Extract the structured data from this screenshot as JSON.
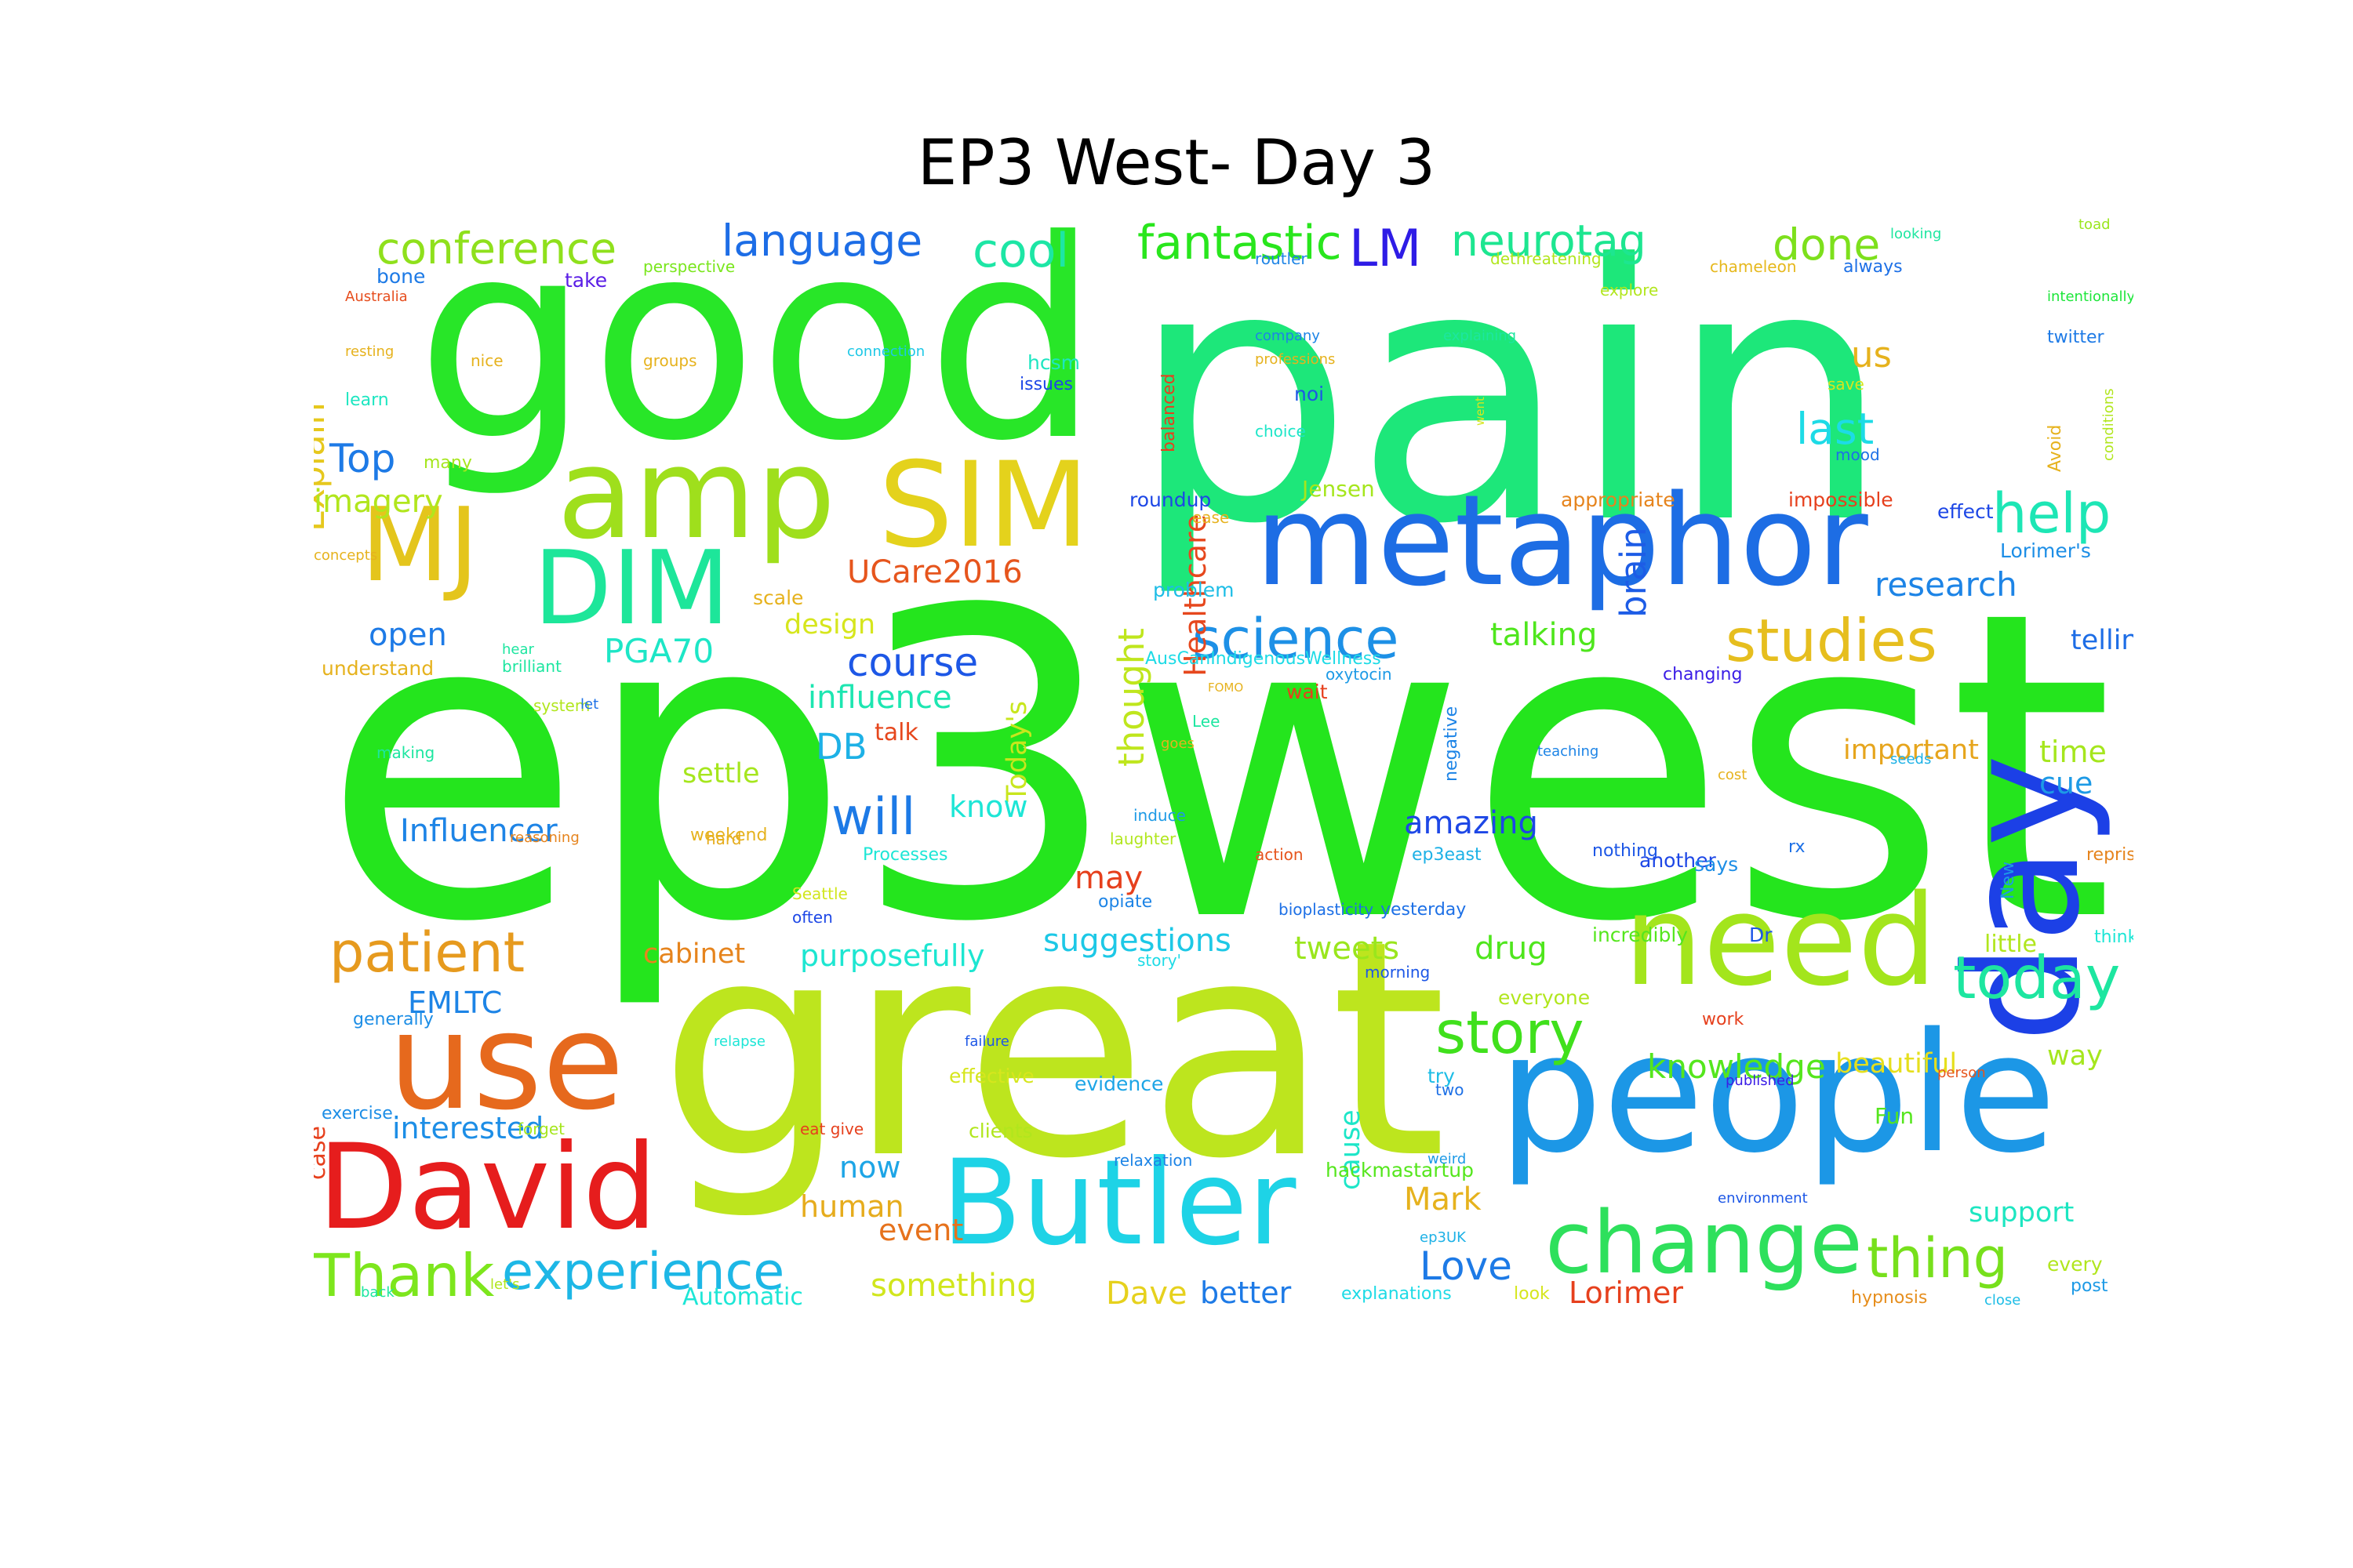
{
  "title": "EP3 West- Day 3",
  "words": [
    {
      "text": "ep3west",
      "color": "#24e51d"
    },
    {
      "text": "pain",
      "color": "#1de77a"
    },
    {
      "text": "good",
      "color": "#28e628"
    },
    {
      "text": "great",
      "color": "#bde51e"
    },
    {
      "text": "people",
      "color": "#1c97e6"
    },
    {
      "text": "metaphor",
      "color": "#1d6de4"
    },
    {
      "text": "use",
      "color": "#e6691d"
    },
    {
      "text": "David",
      "color": "#e61d1d"
    },
    {
      "text": "Butler",
      "color": "#1ed3e6"
    },
    {
      "text": "need",
      "color": "#a3e51c"
    },
    {
      "text": "change",
      "color": "#2ee05c"
    },
    {
      "text": "day",
      "color": "#1c40e6"
    },
    {
      "text": "amp",
      "color": "#9fdf1c"
    },
    {
      "text": "SIM",
      "color": "#e4d21c"
    },
    {
      "text": "MJ",
      "color": "#e4c51c"
    },
    {
      "text": "DIM",
      "color": "#1de69a"
    },
    {
      "text": "science",
      "color": "#1d90e6"
    },
    {
      "text": "studies",
      "color": "#e6be1e"
    },
    {
      "text": "story",
      "color": "#40e01c"
    },
    {
      "text": "thing",
      "color": "#77e01c"
    },
    {
      "text": "today",
      "color": "#1de6a0"
    },
    {
      "text": "experience",
      "color": "#1db7e6"
    },
    {
      "text": "patient",
      "color": "#e69a1e"
    },
    {
      "text": "Thank",
      "color": "#7de61d"
    },
    {
      "text": "help",
      "color": "#1de6b5"
    },
    {
      "text": "conference",
      "color": "#8fe01c"
    },
    {
      "text": "language",
      "color": "#1d6de6"
    },
    {
      "text": "cool",
      "color": "#1de6a5"
    },
    {
      "text": "fantastic",
      "color": "#29e61d"
    },
    {
      "text": "LM",
      "color": "#2e1ce6"
    },
    {
      "text": "neurotag",
      "color": "#1de690"
    },
    {
      "text": "done",
      "color": "#7de01c"
    },
    {
      "text": "Explain",
      "color": "#e6c81d"
    },
    {
      "text": "thought",
      "color": "#bfe61d"
    },
    {
      "text": "Healthcare",
      "color": "#e6471d"
    },
    {
      "text": "brain",
      "color": "#1d5ce6"
    },
    {
      "text": "us",
      "color": "#e6b21d"
    },
    {
      "text": "last",
      "color": "#1ddbe6"
    },
    {
      "text": "Top",
      "color": "#1d7ae6"
    },
    {
      "text": "imagery",
      "color": "#b1e61d"
    },
    {
      "text": "UCare2016",
      "color": "#e6551d"
    },
    {
      "text": "research",
      "color": "#1d84e6"
    },
    {
      "text": "open",
      "color": "#1d7ae6"
    },
    {
      "text": "PGA70",
      "color": "#1de6c6"
    },
    {
      "text": "course",
      "color": "#1d57e6"
    },
    {
      "text": "influence",
      "color": "#1de6b1"
    },
    {
      "text": "talking",
      "color": "#4fe61d"
    },
    {
      "text": "telling",
      "color": "#1d6de6"
    },
    {
      "text": "design",
      "color": "#d6e61d"
    },
    {
      "text": "Today's",
      "color": "#c8e61d"
    },
    {
      "text": "DB",
      "color": "#1db1e6"
    },
    {
      "text": "talk",
      "color": "#e6471d"
    },
    {
      "text": "important",
      "color": "#e6a51d"
    },
    {
      "text": "time",
      "color": "#a5e61d"
    },
    {
      "text": "cue",
      "color": "#1d9ae6"
    },
    {
      "text": "settle",
      "color": "#a5e61d"
    },
    {
      "text": "will",
      "color": "#1d7ae6"
    },
    {
      "text": "know",
      "color": "#1de6d6"
    },
    {
      "text": "amazing",
      "color": "#1d47e6"
    },
    {
      "text": "Influencer",
      "color": "#1d84e6"
    },
    {
      "text": "may",
      "color": "#e6401d"
    },
    {
      "text": "suggestions",
      "color": "#1dc8e6"
    },
    {
      "text": "tweets",
      "color": "#9ae61d"
    },
    {
      "text": "drug",
      "color": "#4fe61d"
    },
    {
      "text": "little",
      "color": "#b1e61d"
    },
    {
      "text": "cabinet",
      "color": "#e6841d"
    },
    {
      "text": "purposefully",
      "color": "#1de6d1"
    },
    {
      "text": "EMLTC",
      "color": "#1d84e6"
    },
    {
      "text": "knowledge",
      "color": "#55e61d"
    },
    {
      "text": "beautiful",
      "color": "#e6df1d"
    },
    {
      "text": "way",
      "color": "#a5e61d"
    },
    {
      "text": "case",
      "color": "#e6401d"
    },
    {
      "text": "cause",
      "color": "#1de6c8"
    },
    {
      "text": "interested",
      "color": "#1d8ee6"
    },
    {
      "text": "now",
      "color": "#1da5e6"
    },
    {
      "text": "human",
      "color": "#e6ac1d"
    },
    {
      "text": "event",
      "color": "#e6721d"
    },
    {
      "text": "Mark",
      "color": "#e6b21d"
    },
    {
      "text": "support",
      "color": "#1de6c1"
    },
    {
      "text": "Love",
      "color": "#1d7ae6"
    },
    {
      "text": "something",
      "color": "#d1e61d"
    },
    {
      "text": "Dave",
      "color": "#e6d11d"
    },
    {
      "text": "better",
      "color": "#1d7ae6"
    },
    {
      "text": "Lorimer",
      "color": "#e6401d"
    },
    {
      "text": "Automatic",
      "color": "#1de6d6"
    },
    {
      "text": "hackmastartup",
      "color": "#55e61d"
    },
    {
      "text": "Fun",
      "color": "#55e61d"
    },
    {
      "text": "every",
      "color": "#b1e61d"
    },
    {
      "text": "post",
      "color": "#1d9ae6"
    },
    {
      "text": "explanations",
      "color": "#1ddbe6"
    },
    {
      "text": "look",
      "color": "#d6e61d"
    },
    {
      "text": "hypnosis",
      "color": "#e68e1d"
    },
    {
      "text": "close",
      "color": "#1dbde6"
    },
    {
      "text": "bone",
      "color": "#1d7ae6"
    },
    {
      "text": "take",
      "color": "#5a1de6"
    },
    {
      "text": "perspective",
      "color": "#7ae61d"
    },
    {
      "text": "Australia",
      "color": "#e64d1d"
    },
    {
      "text": "routler",
      "color": "#1d84e6"
    },
    {
      "text": "dethreatening",
      "color": "#b1e61d"
    },
    {
      "text": "chameleon",
      "color": "#e6b81d"
    },
    {
      "text": "always",
      "color": "#1d70e6"
    },
    {
      "text": "looking",
      "color": "#1de6a0"
    },
    {
      "text": "explore",
      "color": "#b1e61d"
    },
    {
      "text": "intentionally",
      "color": "#1de63a"
    },
    {
      "text": "twitter",
      "color": "#1d7ae6"
    },
    {
      "text": "Avoid",
      "color": "#e6b21d"
    },
    {
      "text": "conditions",
      "color": "#b1e61d"
    },
    {
      "text": "toad",
      "color": "#9ae61d"
    },
    {
      "text": "company",
      "color": "#1d84e6"
    },
    {
      "text": "professions",
      "color": "#e6b21d"
    },
    {
      "text": "explaining",
      "color": "#1de6a0"
    },
    {
      "text": "hcsm",
      "color": "#1de6c1"
    },
    {
      "text": "issues",
      "color": "#1d47e6"
    },
    {
      "text": "choice",
      "color": "#1de6c8"
    },
    {
      "text": "noi",
      "color": "#1d57e6"
    },
    {
      "text": "Jensen",
      "color": "#a5e61d"
    },
    {
      "text": "roundup",
      "color": "#1d47e6"
    },
    {
      "text": "appropriate",
      "color": "#e6841d"
    },
    {
      "text": "impossible",
      "color": "#e6401d"
    },
    {
      "text": "effect",
      "color": "#1d47e6"
    },
    {
      "text": "Lorimer's",
      "color": "#1d8ee6"
    },
    {
      "text": "problem",
      "color": "#1dbde6"
    },
    {
      "text": "AusCanIndigenousWellness",
      "color": "#1ddbe6"
    },
    {
      "text": "oxytocin",
      "color": "#1d9ae6"
    },
    {
      "text": "changing",
      "color": "#3a1de6"
    },
    {
      "text": "negative",
      "color": "#1d84e6"
    },
    {
      "text": "teaching",
      "color": "#1d84e6"
    },
    {
      "text": "cost",
      "color": "#e6b21d"
    },
    {
      "text": "seeds",
      "color": "#1db1e6"
    },
    {
      "text": "induce",
      "color": "#1d9ae6"
    },
    {
      "text": "laughter",
      "color": "#b1e61d"
    },
    {
      "text": "Processes",
      "color": "#1de6d6"
    },
    {
      "text": "action",
      "color": "#e6551d"
    },
    {
      "text": "ep3east",
      "color": "#1db1e6"
    },
    {
      "text": "nothing",
      "color": "#1d57e6"
    },
    {
      "text": "another",
      "color": "#1d47e6"
    },
    {
      "text": "says",
      "color": "#1d8ee6"
    },
    {
      "text": "New",
      "color": "#1d9ae6"
    },
    {
      "text": "reprise",
      "color": "#e6841d"
    },
    {
      "text": "Seattle",
      "color": "#d1e61d"
    },
    {
      "text": "often",
      "color": "#1d47e6"
    },
    {
      "text": "opiate",
      "color": "#1d84e6"
    },
    {
      "text": "bioplasticity",
      "color": "#1d70e6"
    },
    {
      "text": "yesterday",
      "color": "#1d70e6"
    },
    {
      "text": "incredibly",
      "color": "#55e61d"
    },
    {
      "text": "Dr",
      "color": "#1d57e6"
    },
    {
      "text": "think",
      "color": "#1de6d6"
    },
    {
      "text": "story'",
      "color": "#1ddbe6"
    },
    {
      "text": "morning",
      "color": "#1d57e6"
    },
    {
      "text": "everyone",
      "color": "#b1e61d"
    },
    {
      "text": "work",
      "color": "#e6401d"
    },
    {
      "text": "failure",
      "color": "#1d57e6"
    },
    {
      "text": "effective",
      "color": "#d6e61d"
    },
    {
      "text": "evidence",
      "color": "#1da5e6"
    },
    {
      "text": "try",
      "color": "#1dbde6"
    },
    {
      "text": "two",
      "color": "#1d70e6"
    },
    {
      "text": "published",
      "color": "#3a1de6"
    },
    {
      "text": "person",
      "color": "#e6551d"
    },
    {
      "text": "clients",
      "color": "#b1e61d"
    },
    {
      "text": "relaxation",
      "color": "#1d84e6"
    },
    {
      "text": "weird",
      "color": "#1d9ae6"
    },
    {
      "text": "environment",
      "color": "#1d57e6"
    },
    {
      "text": "ep3UK",
      "color": "#1db1e6"
    },
    {
      "text": "exercise",
      "color": "#1d8ee6"
    },
    {
      "text": "forget",
      "color": "#a5e61d"
    },
    {
      "text": "let's",
      "color": "#b1e61d"
    },
    {
      "text": "eat give",
      "color": "#e6401d"
    },
    {
      "text": "relapse",
      "color": "#1de6d6"
    },
    {
      "text": "back",
      "color": "#1de6a0"
    },
    {
      "text": "generally",
      "color": "#1d8ee6"
    },
    {
      "text": "reasoning",
      "color": "#e6841d"
    },
    {
      "text": "hard",
      "color": "#e6ac1d"
    },
    {
      "text": "weekend",
      "color": "#e6b21d"
    },
    {
      "text": "making",
      "color": "#1de6a0"
    },
    {
      "text": "system",
      "color": "#b1e61d"
    },
    {
      "text": "brilliant",
      "color": "#1de6a0"
    },
    {
      "text": "hear",
      "color": "#1de6a0"
    },
    {
      "text": "understand",
      "color": "#e6b21d"
    },
    {
      "text": "scale",
      "color": "#e6b21d"
    },
    {
      "text": "concepts",
      "color": "#e6b21d"
    },
    {
      "text": "many",
      "color": "#a5e61d"
    },
    {
      "text": "learn",
      "color": "#1de6c1"
    },
    {
      "text": "resting",
      "color": "#e6b21d"
    },
    {
      "text": "nice",
      "color": "#e6b21d"
    },
    {
      "text": "groups",
      "color": "#e6b21d"
    },
    {
      "text": "connection",
      "color": "#1dc8e6"
    },
    {
      "text": "balanced",
      "color": "#e6401d"
    },
    {
      "text": "went",
      "color": "#d6e61d"
    },
    {
      "text": "save",
      "color": "#d6e61d"
    },
    {
      "text": "mood",
      "color": "#1d70e6"
    },
    {
      "text": "ease",
      "color": "#e6b21d"
    },
    {
      "text": "let",
      "color": "#1d70e6"
    },
    {
      "text": "goes",
      "color": "#e6b21d"
    },
    {
      "text": "Lee",
      "color": "#1de6a0"
    },
    {
      "text": "FOMO",
      "color": "#e6b21d"
    },
    {
      "text": "wait",
      "color": "#e6401d"
    },
    {
      "text": "rx",
      "color": "#1d70e6"
    }
  ]
}
